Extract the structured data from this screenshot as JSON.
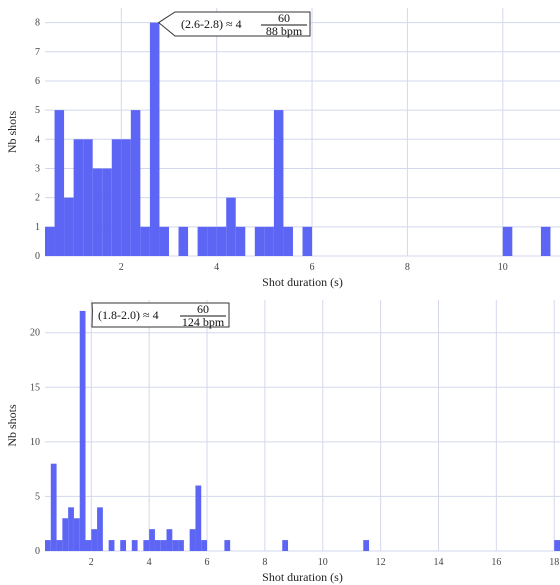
{
  "chart_data": [
    {
      "type": "bar",
      "xlabel": "Shot duration (s)",
      "ylabel": "Nb shots",
      "xlim": [
        0.4,
        11.2
      ],
      "ylim": [
        0,
        8.5
      ],
      "xticks": [
        2,
        4,
        6,
        8,
        10
      ],
      "yticks": [
        0,
        1,
        2,
        3,
        4,
        5,
        6,
        7,
        8
      ],
      "bin_width": 0.2,
      "grid": true,
      "bins": [
        {
          "x": 0.4,
          "y": 1
        },
        {
          "x": 0.6,
          "y": 5
        },
        {
          "x": 0.8,
          "y": 2
        },
        {
          "x": 1.0,
          "y": 4
        },
        {
          "x": 1.2,
          "y": 4
        },
        {
          "x": 1.4,
          "y": 3
        },
        {
          "x": 1.6,
          "y": 3
        },
        {
          "x": 1.8,
          "y": 4
        },
        {
          "x": 2.0,
          "y": 4
        },
        {
          "x": 2.2,
          "y": 5
        },
        {
          "x": 2.4,
          "y": 1
        },
        {
          "x": 2.6,
          "y": 8
        },
        {
          "x": 2.8,
          "y": 1
        },
        {
          "x": 3.2,
          "y": 1
        },
        {
          "x": 3.6,
          "y": 1
        },
        {
          "x": 3.8,
          "y": 1
        },
        {
          "x": 4.0,
          "y": 1
        },
        {
          "x": 4.2,
          "y": 2
        },
        {
          "x": 4.4,
          "y": 1
        },
        {
          "x": 4.8,
          "y": 1
        },
        {
          "x": 5.0,
          "y": 1
        },
        {
          "x": 5.2,
          "y": 5
        },
        {
          "x": 5.4,
          "y": 1
        },
        {
          "x": 5.8,
          "y": 1
        },
        {
          "x": 10.0,
          "y": 1
        },
        {
          "x": 10.8,
          "y": 1
        }
      ],
      "annotation": {
        "text": "(2.6-2.8) ≈ 4",
        "num": "60",
        "den": "88 bpm",
        "x": 2.7,
        "y": 8
      }
    },
    {
      "type": "bar",
      "xlabel": "Shot duration (s)",
      "ylabel": "Nb shots",
      "xlim": [
        0.4,
        18.2
      ],
      "ylim": [
        0,
        23
      ],
      "xticks": [
        2,
        4,
        6,
        8,
        10,
        12,
        14,
        16,
        18
      ],
      "yticks": [
        0,
        5,
        10,
        15,
        20
      ],
      "bin_width": 0.2,
      "grid": true,
      "bins": [
        {
          "x": 0.4,
          "y": 1
        },
        {
          "x": 0.6,
          "y": 8
        },
        {
          "x": 0.8,
          "y": 1
        },
        {
          "x": 1.0,
          "y": 3
        },
        {
          "x": 1.2,
          "y": 4
        },
        {
          "x": 1.4,
          "y": 3
        },
        {
          "x": 1.6,
          "y": 22
        },
        {
          "x": 1.8,
          "y": 1
        },
        {
          "x": 2.0,
          "y": 2
        },
        {
          "x": 2.2,
          "y": 4
        },
        {
          "x": 2.6,
          "y": 1
        },
        {
          "x": 3.0,
          "y": 1
        },
        {
          "x": 3.4,
          "y": 1
        },
        {
          "x": 3.8,
          "y": 1
        },
        {
          "x": 4.0,
          "y": 2
        },
        {
          "x": 4.2,
          "y": 1
        },
        {
          "x": 4.4,
          "y": 1
        },
        {
          "x": 4.6,
          "y": 2
        },
        {
          "x": 4.8,
          "y": 1
        },
        {
          "x": 5.0,
          "y": 1
        },
        {
          "x": 5.4,
          "y": 2
        },
        {
          "x": 5.6,
          "y": 6
        },
        {
          "x": 5.8,
          "y": 1
        },
        {
          "x": 6.6,
          "y": 1
        },
        {
          "x": 8.6,
          "y": 1
        },
        {
          "x": 11.4,
          "y": 1
        },
        {
          "x": 18.0,
          "y": 1
        }
      ],
      "annotation": {
        "text": "(1.8-2.0) ≈ 4",
        "num": "60",
        "den": "124 bpm",
        "x": 1.9,
        "y": 22
      }
    }
  ]
}
